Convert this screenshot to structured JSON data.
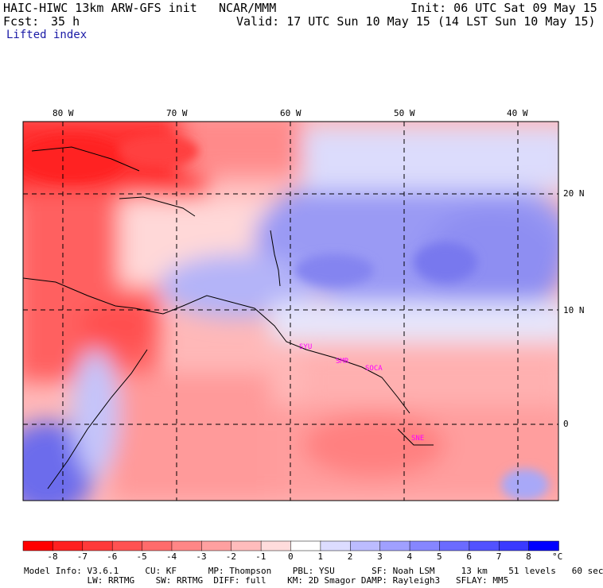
{
  "header": {
    "model": "HAIC-HIWC 13km ARW-GFS init",
    "org": "NCAR/MMM",
    "init": "Init: 06 UTC Sat 09 May 15",
    "fcst_label": "Fcst:",
    "fcst_value": "35 h",
    "valid": "Valid: 17 UTC Sun 10 May 15 (14 LST Sun 10 May 15)",
    "field": "Lifted index"
  },
  "map": {
    "lon_labels": [
      "80 W",
      "70 W",
      "60 W",
      "50 W",
      "40 W"
    ],
    "lat_labels": [
      "20 N",
      "10 N",
      "0"
    ],
    "stations": [
      "SYU",
      "SMR",
      "SOCA",
      "SNE"
    ]
  },
  "colorbar": {
    "ticks": [
      "-8",
      "-7",
      "-6",
      "-5",
      "-4",
      "-3",
      "-2",
      "-1",
      "0",
      "1",
      "2",
      "3",
      "4",
      "5",
      "6",
      "7",
      "8"
    ],
    "unit": "°C",
    "colors": [
      "#ff0000",
      "#ff2020",
      "#ff3a3a",
      "#ff5252",
      "#ff6b6b",
      "#ff8686",
      "#ffa0a0",
      "#ffbcbc",
      "#ffdcdc",
      "#ffffff",
      "#dcdcff",
      "#bcbcff",
      "#a0a0ff",
      "#8686ff",
      "#6b6bff",
      "#5252ff",
      "#3a3aff",
      "#0000ff"
    ]
  },
  "model_info": {
    "line1": "Model Info: V3.6.1     CU: KF      MP: Thompson    PBL: YSU       SF: Noah LSM     13 km    51 levels   60 sec",
    "line2": "            LW: RRTMG    SW: RRTMG  DIFF: full    KM: 2D Smagor DAMP: Rayleigh3   SFLAY: MM5"
  }
}
